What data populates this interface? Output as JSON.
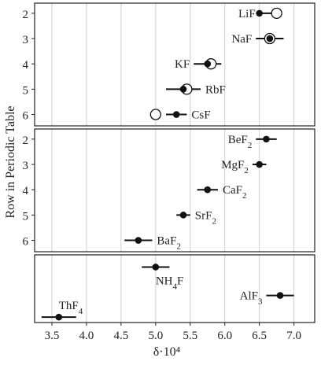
{
  "chart_data": {
    "type": "scatter",
    "xlabel": "δ·10⁴",
    "ylabel": "Row in Periodic Table",
    "xlim": [
      3.25,
      7.3
    ],
    "xticks": [
      "3.5",
      "4.0",
      "4.5",
      "5.0",
      "5.5",
      "6.0",
      "6.5",
      "7.0"
    ],
    "grid": "vertical",
    "panels": [
      {
        "id": "alkali-fluorides",
        "ylim": [
          1.6,
          6.45
        ],
        "yticks": [
          2,
          3,
          4,
          5,
          6
        ],
        "points": [
          {
            "label": "LiF",
            "row": 2,
            "value": 6.5,
            "err": [
              6.5,
              6.7
            ],
            "open": 6.75,
            "label_side": "left"
          },
          {
            "label": "NaF",
            "row": 3,
            "value": 6.65,
            "err": [
              6.45,
              6.85
            ],
            "open": 6.65,
            "label_side": "left"
          },
          {
            "label": "KF",
            "row": 4,
            "value": 5.75,
            "err": [
              5.55,
              5.95
            ],
            "open": 5.8,
            "label_side": "left"
          },
          {
            "label": "RbF",
            "row": 5,
            "value": 5.4,
            "err": [
              5.15,
              5.65
            ],
            "open": 5.45,
            "label_side": "right"
          },
          {
            "label": "CsF",
            "row": 6,
            "value": 5.3,
            "err": [
              5.15,
              5.45
            ],
            "open": 5.0,
            "label_side": "right"
          }
        ]
      },
      {
        "id": "alkaline-earth-fluorides",
        "ylim": [
          1.6,
          6.45
        ],
        "yticks": [
          2,
          3,
          4,
          5,
          6
        ],
        "points": [
          {
            "label": "BeF",
            "sub": "2",
            "row": 2,
            "value": 6.6,
            "err": [
              6.45,
              6.75
            ],
            "label_side": "left"
          },
          {
            "label": "MgF",
            "sub": "2",
            "row": 3,
            "value": 6.5,
            "err": [
              6.4,
              6.6
            ],
            "label_side": "left"
          },
          {
            "label": "CaF",
            "sub": "2",
            "row": 4,
            "value": 5.75,
            "err": [
              5.6,
              5.9
            ],
            "label_side": "right"
          },
          {
            "label": "SrF",
            "sub": "2",
            "row": 5,
            "value": 5.4,
            "err": [
              5.3,
              5.5
            ],
            "label_side": "right"
          },
          {
            "label": "BaF",
            "sub": "2",
            "row": 6,
            "value": 4.75,
            "err": [
              4.55,
              4.95
            ],
            "label_side": "right"
          }
        ]
      },
      {
        "id": "other-fluorides",
        "ylim": [
          0,
          1
        ],
        "yticks": [],
        "points": [
          {
            "label": "NH",
            "sub": "4",
            "tail": "F",
            "row": 0.18,
            "value": 5.0,
            "err": [
              4.8,
              5.2
            ],
            "label_side": "below"
          },
          {
            "label": "AlF",
            "sub": "3",
            "row": 0.6,
            "value": 6.8,
            "err": [
              6.6,
              7.0
            ],
            "label_side": "left"
          },
          {
            "label": "ThF",
            "sub": "4",
            "row": 0.92,
            "value": 3.6,
            "err": [
              3.35,
              3.85
            ],
            "label_side": "above"
          }
        ]
      }
    ]
  }
}
